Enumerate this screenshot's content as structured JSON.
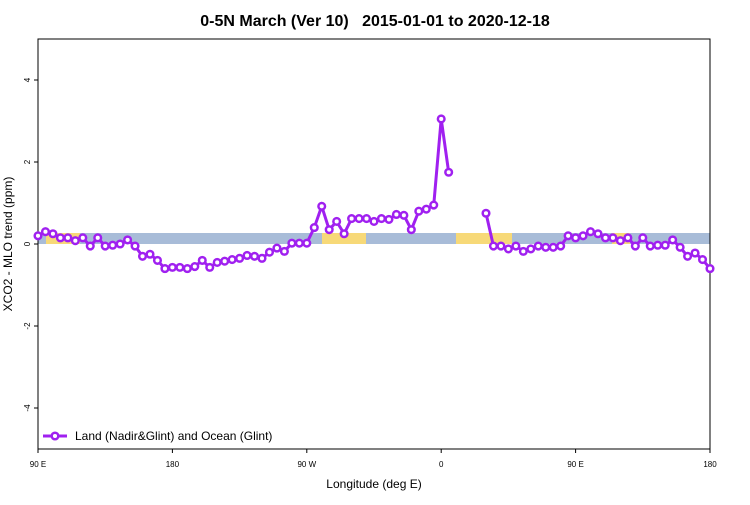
{
  "chart_data": {
    "type": "line",
    "title": "0-5N March (Ver 10)   2015-01-01 to 2020-12-18",
    "x_label": "Longitude (deg E)",
    "y_label": "XCO2 - MLO trend (ppm)",
    "x": [
      90,
      95,
      100,
      105,
      110,
      115,
      120,
      125,
      130,
      135,
      140,
      145,
      150,
      155,
      160,
      165,
      170,
      175,
      180,
      185,
      190,
      195,
      200,
      205,
      210,
      215,
      220,
      225,
      230,
      235,
      240,
      245,
      250,
      255,
      260,
      265,
      270,
      275,
      280,
      285,
      290,
      295,
      300,
      305,
      310,
      315,
      320,
      325,
      330,
      335,
      340,
      345,
      350,
      355,
      360,
      365,
      370,
      375,
      380,
      385,
      390,
      395,
      400,
      405,
      410,
      415,
      420,
      425,
      430,
      435,
      440,
      445,
      450,
      455,
      460,
      465,
      470,
      475,
      480,
      485,
      490,
      495,
      500,
      505,
      510,
      515,
      520,
      525,
      530,
      535,
      540
    ],
    "series": [
      {
        "name": "Land (Nadir&Glint) and Ocean (Glint)",
        "color": "#a020f0",
        "values": [
          0.2,
          0.3,
          0.25,
          0.15,
          0.15,
          0.08,
          0.15,
          -0.05,
          0.15,
          -0.05,
          -0.03,
          0.0,
          0.1,
          -0.05,
          -0.3,
          -0.25,
          -0.4,
          -0.6,
          -0.57,
          -0.57,
          -0.6,
          -0.55,
          -0.4,
          -0.57,
          -0.45,
          -0.42,
          -0.38,
          -0.35,
          -0.28,
          -0.3,
          -0.35,
          -0.2,
          -0.1,
          -0.18,
          0.02,
          0.02,
          0.02,
          0.4,
          0.92,
          0.35,
          0.55,
          0.25,
          0.62,
          0.62,
          0.62,
          0.55,
          0.62,
          0.6,
          0.72,
          0.7,
          0.35,
          0.8,
          0.85,
          0.95,
          3.05,
          1.75,
          null,
          null,
          null,
          null,
          0.75,
          -0.05,
          -0.05,
          -0.12,
          -0.05,
          -0.18,
          -0.12,
          -0.05,
          -0.08,
          -0.08,
          -0.05,
          0.2,
          0.15,
          0.2,
          0.3,
          0.25,
          0.15,
          0.15,
          0.08,
          0.15,
          -0.05,
          0.15,
          -0.05,
          -0.03,
          -0.03,
          0.1,
          -0.08,
          -0.3,
          -0.22,
          -0.38,
          -0.6
        ]
      }
    ],
    "xlim": [
      90,
      540
    ],
    "xticks": [
      {
        "value": 90,
        "label": "90 E"
      },
      180,
      {
        "value": 270,
        "label": "90 W"
      },
      {
        "value": 360,
        "label": "0"
      },
      {
        "value": 450,
        "label": "90 E"
      },
      {
        "value": 540,
        "label": "180"
      }
    ],
    "ylim": [
      -5,
      5
    ],
    "yticks": [
      -4,
      -2,
      0,
      2,
      4
    ],
    "legend": "bottom-left"
  }
}
